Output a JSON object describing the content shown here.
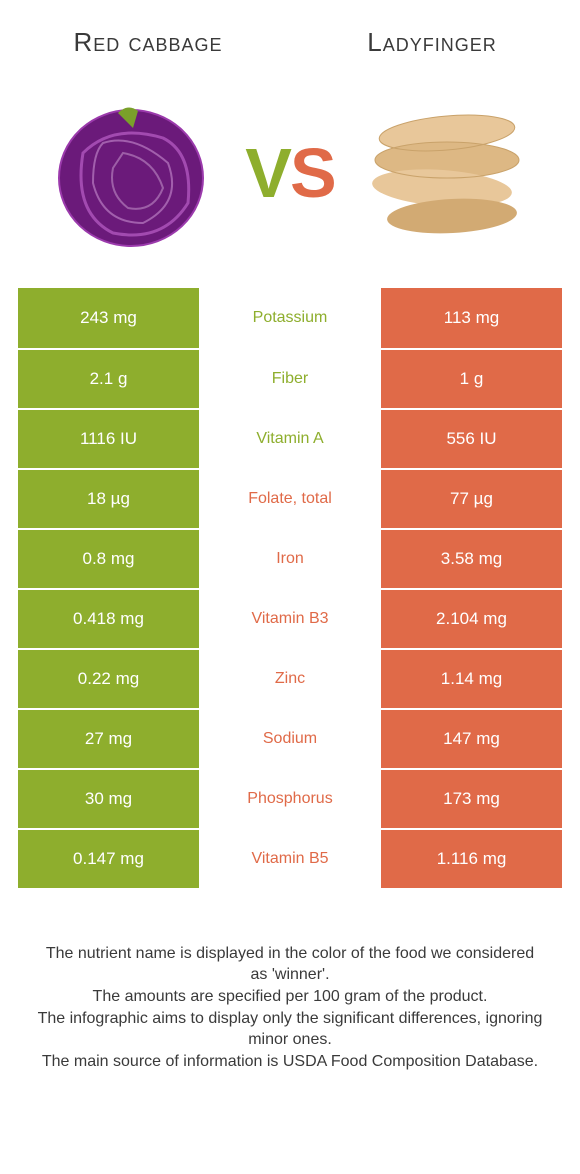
{
  "colors": {
    "left": "#8eae2d",
    "right": "#e06a48",
    "text_dark": "#3a3a3a"
  },
  "left_title": "Red cabbage",
  "right_title": "Ladyfinger",
  "vs_v": "V",
  "vs_s": "S",
  "rows": [
    {
      "left": "243 mg",
      "mid": "Potassium",
      "right": "113 mg",
      "winner": "left"
    },
    {
      "left": "2.1 g",
      "mid": "Fiber",
      "right": "1 g",
      "winner": "left"
    },
    {
      "left": "1116 IU",
      "mid": "Vitamin A",
      "right": "556 IU",
      "winner": "left"
    },
    {
      "left": "18 µg",
      "mid": "Folate, total",
      "right": "77 µg",
      "winner": "right"
    },
    {
      "left": "0.8 mg",
      "mid": "Iron",
      "right": "3.58 mg",
      "winner": "right"
    },
    {
      "left": "0.418 mg",
      "mid": "Vitamin B3",
      "right": "2.104 mg",
      "winner": "right"
    },
    {
      "left": "0.22 mg",
      "mid": "Zinc",
      "right": "1.14 mg",
      "winner": "right"
    },
    {
      "left": "27 mg",
      "mid": "Sodium",
      "right": "147 mg",
      "winner": "right"
    },
    {
      "left": "30 mg",
      "mid": "Phosphorus",
      "right": "173 mg",
      "winner": "right"
    },
    {
      "left": "0.147 mg",
      "mid": "Vitamin B5",
      "right": "1.116 mg",
      "winner": "right"
    }
  ],
  "footnote": {
    "l1": "The nutrient name is displayed in the color of the food we considered as 'winner'.",
    "l2": "The amounts are specified per 100 gram of the product.",
    "l3": "The infographic aims to display only the significant differences, ignoring minor ones.",
    "l4": "The main source of information is USDA Food Composition Database."
  }
}
